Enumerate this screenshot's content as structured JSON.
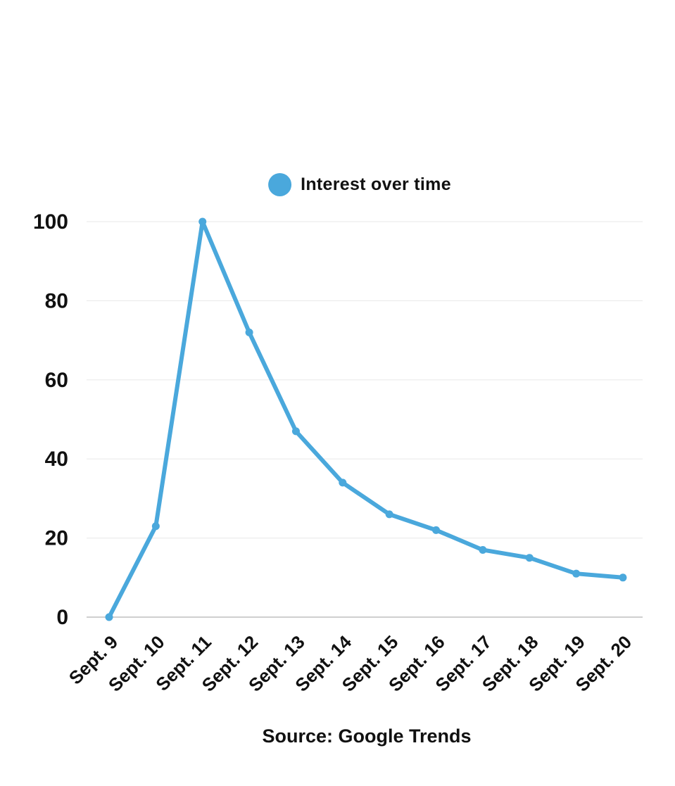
{
  "legend": {
    "label": "Interest over time",
    "marker_color": "#4aa8dc"
  },
  "footer": {
    "source": "Source: Google Trends"
  },
  "colors": {
    "line": "#4aa8dc",
    "grid_line": "#ececec",
    "axis_line": "#bfbfbf",
    "text": "#111111",
    "background": "#ffffff"
  },
  "chart_data": {
    "type": "line",
    "title": "Interest over time",
    "categories": [
      "Sept. 9",
      "Sept. 10",
      "Sept. 11",
      "Sept. 12",
      "Sept. 13",
      "Sept. 14",
      "Sept. 15",
      "Sept. 16",
      "Sept. 17",
      "Sept. 18",
      "Sept. 19",
      "Sept. 20"
    ],
    "series": [
      {
        "name": "Interest over time",
        "color": "#4aa8dc",
        "values": [
          0,
          23,
          100,
          72,
          47,
          34,
          26,
          22,
          17,
          15,
          11,
          10
        ]
      }
    ],
    "xlabel": "",
    "ylabel": "",
    "ylim": [
      0,
      100
    ],
    "yticks": [
      0,
      20,
      40,
      60,
      80,
      100
    ],
    "grid": "horizontal-only",
    "legend_position": "top-center",
    "annotations": [
      "Source: Google Trends"
    ]
  }
}
